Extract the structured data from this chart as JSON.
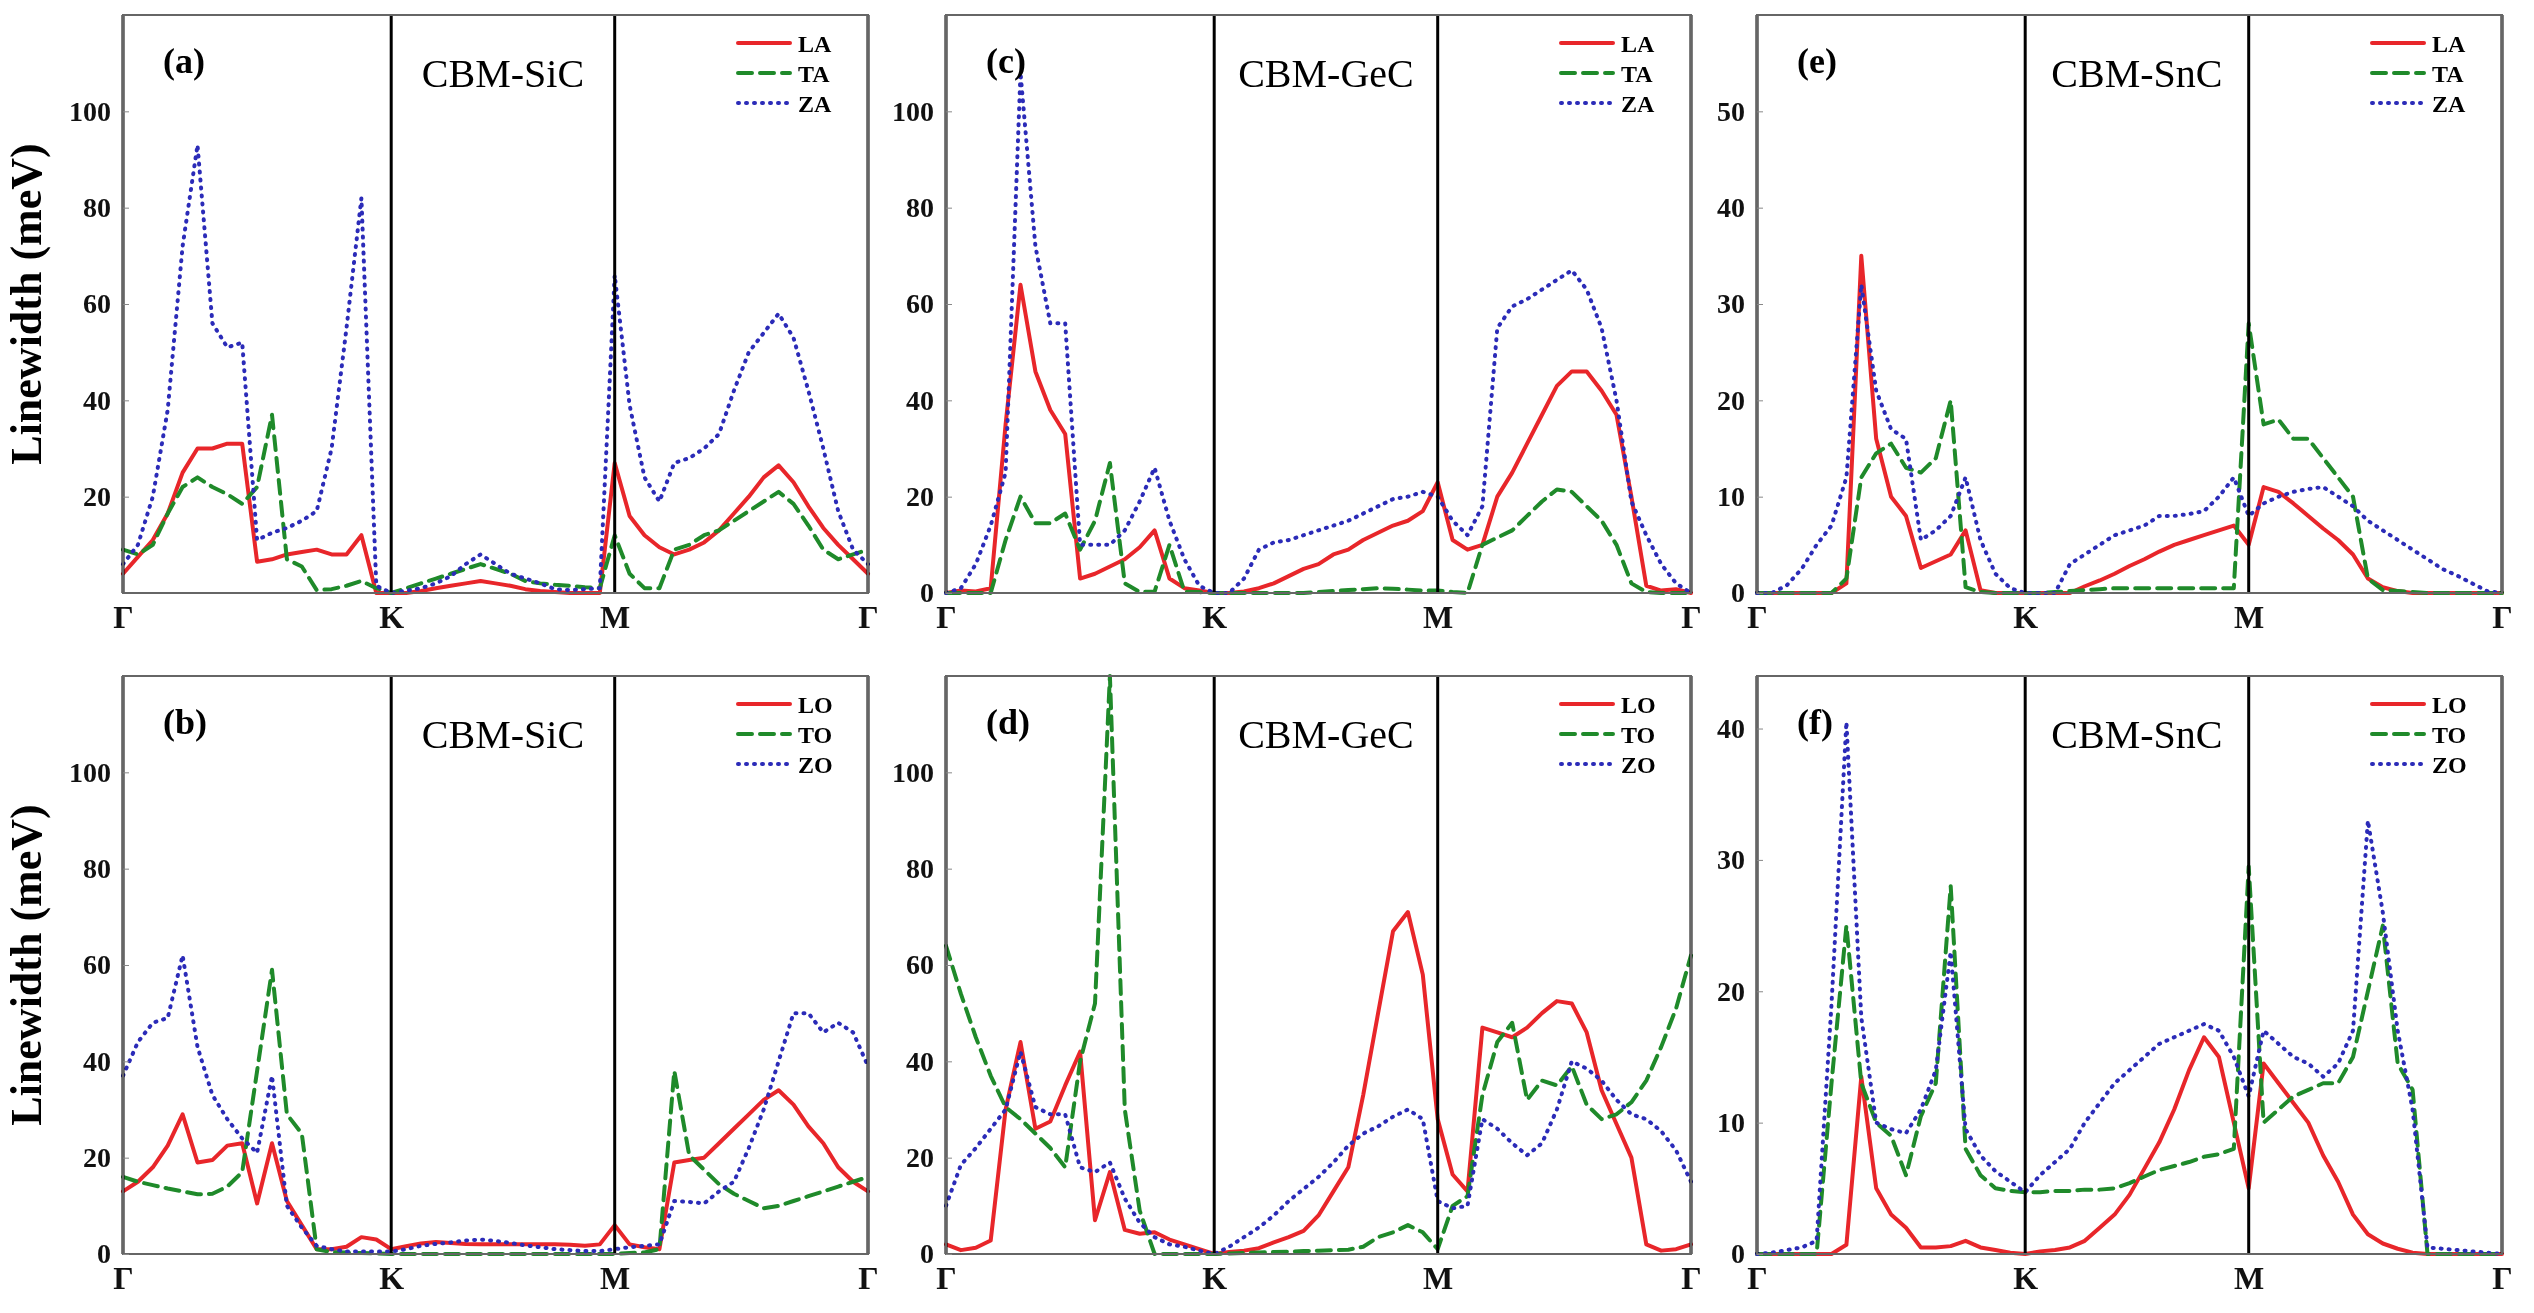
{
  "chart_data": [
    {
      "type": "line",
      "title": "(a)",
      "subtitle": "CBM-SiC",
      "ylabel": "Linewidth (meV)",
      "categories": [
        "Γ",
        null,
        null,
        null,
        null,
        null,
        null,
        null,
        null,
        null,
        null,
        null,
        null,
        null,
        null,
        null,
        null,
        null,
        "K",
        null,
        null,
        null,
        null,
        null,
        null,
        null,
        null,
        null,
        null,
        null,
        null,
        null,
        null,
        "M",
        null,
        null,
        null,
        null,
        null,
        null,
        null,
        null,
        null,
        null,
        null,
        null,
        null,
        null,
        null,
        null,
        "Γ"
      ],
      "ylim": [
        0,
        120
      ],
      "yticks": [
        20,
        40,
        60,
        80,
        100
      ],
      "legend": "top right",
      "grid": "x",
      "series": [
        {
          "name": "LA",
          "color": "#e8262a",
          "line_style": "solid",
          "values": [
            4,
            7.5,
            11,
            16.5,
            25,
            30,
            30,
            31,
            31,
            6.5,
            7,
            8,
            8.5,
            9,
            8,
            8,
            12,
            0,
            0,
            0,
            0.4,
            1,
            1.5,
            2,
            2.5,
            2,
            1.5,
            0.8,
            0.4,
            0.2,
            0,
            0,
            0,
            27,
            16,
            12,
            9.5,
            8,
            9,
            10.5,
            13,
            16.5,
            20,
            24,
            26.5,
            23,
            18,
            13.5,
            10,
            7,
            4
          ]
        },
        {
          "name": "TA",
          "color": "#1f8a2a",
          "line_style": "dashed",
          "values": [
            9,
            8,
            10,
            16.5,
            22,
            24,
            22,
            20.5,
            18.5,
            22,
            37,
            7,
            5.5,
            0.6,
            0.8,
            1.5,
            2.5,
            1,
            0,
            1,
            2,
            3,
            4,
            5,
            6,
            5,
            4,
            2.5,
            2,
            1.7,
            1.5,
            1.2,
            1,
            12,
            4,
            1,
            1,
            9,
            10,
            12,
            13,
            15,
            17,
            19,
            21,
            18.5,
            14,
            9,
            7,
            8,
            9
          ]
        },
        {
          "name": "ZA",
          "color": "#2b2bb8",
          "line_style": "dotted",
          "values": [
            6,
            10,
            20,
            38,
            72,
            93,
            56,
            51,
            52,
            11,
            12.5,
            13.5,
            15,
            17,
            30,
            55,
            82,
            1.5,
            0,
            0.5,
            1,
            2,
            3.5,
            6,
            8,
            6,
            4,
            3,
            2,
            0.8,
            0.6,
            0.8,
            1,
            66,
            39,
            24,
            19,
            27,
            28,
            30,
            33,
            42,
            50,
            54,
            58,
            53,
            42,
            30,
            17,
            9,
            6
          ]
        }
      ]
    },
    {
      "type": "line",
      "title": "(c)",
      "subtitle": "CBM-GeC",
      "categories": [
        "Γ",
        null,
        null,
        null,
        null,
        null,
        null,
        null,
        null,
        null,
        null,
        null,
        null,
        null,
        null,
        null,
        null,
        null,
        "K",
        null,
        null,
        null,
        null,
        null,
        null,
        null,
        null,
        null,
        null,
        null,
        null,
        null,
        null,
        "M",
        null,
        null,
        null,
        null,
        null,
        null,
        null,
        null,
        null,
        null,
        null,
        null,
        null,
        null,
        null,
        null,
        "Γ"
      ],
      "ylim": [
        0,
        120
      ],
      "yticks": [
        0,
        20,
        40,
        60,
        80,
        100
      ],
      "legend": "top right",
      "grid": "x",
      "series": [
        {
          "name": "LA",
          "color": "#e8262a",
          "line_style": "solid",
          "values": [
            0,
            0.5,
            0.3,
            1,
            35,
            64,
            46,
            38,
            33,
            3,
            4,
            5.5,
            7,
            9.5,
            13,
            3,
            1,
            0.5,
            0,
            0,
            0.3,
            1,
            2,
            3.5,
            5,
            6,
            8,
            9,
            11,
            12.5,
            14,
            15,
            17,
            23,
            11,
            9,
            10,
            20,
            25,
            31,
            37,
            43,
            46,
            46,
            42,
            37,
            20,
            1.5,
            0.5,
            0.8,
            0
          ]
        },
        {
          "name": "TA",
          "color": "#1f8a2a",
          "line_style": "dashed",
          "values": [
            0,
            0,
            0,
            0,
            11,
            20,
            14.5,
            14.5,
            16.5,
            9,
            15,
            27,
            2,
            0.2,
            0.3,
            10,
            0.3,
            0.2,
            0,
            0,
            0,
            0,
            0,
            0,
            0,
            0.2,
            0.4,
            0.6,
            0.8,
            1,
            0.9,
            0.7,
            0.5,
            0.5,
            0.2,
            0,
            10,
            11.5,
            13,
            16,
            19,
            21.5,
            21,
            18,
            15,
            10,
            2,
            0.2,
            0,
            0,
            0
          ]
        },
        {
          "name": "ZA",
          "color": "#2b2bb8",
          "line_style": "dotted",
          "values": [
            0,
            1,
            6,
            14,
            25,
            108,
            72,
            56,
            56,
            10,
            10,
            10,
            13,
            19,
            26,
            15,
            7,
            1.5,
            0,
            0,
            3,
            9,
            10.5,
            11,
            12,
            13,
            14,
            15,
            16.5,
            18,
            19.5,
            20,
            21,
            20,
            15,
            12,
            18,
            55,
            59.5,
            61,
            63,
            65,
            67,
            63,
            55,
            40,
            19,
            12,
            6,
            2,
            0
          ]
        }
      ]
    },
    {
      "type": "line",
      "title": "(e)",
      "subtitle": "CBM-SnC",
      "categories": [
        "Γ",
        null,
        null,
        null,
        null,
        null,
        null,
        null,
        null,
        null,
        null,
        null,
        null,
        null,
        null,
        null,
        null,
        null,
        "K",
        null,
        null,
        null,
        null,
        null,
        null,
        null,
        null,
        null,
        null,
        null,
        null,
        null,
        null,
        "M",
        null,
        null,
        null,
        null,
        null,
        null,
        null,
        null,
        null,
        null,
        null,
        null,
        null,
        null,
        null,
        null,
        "Γ"
      ],
      "ylim": [
        0,
        60
      ],
      "yticks": [
        0,
        10,
        20,
        30,
        40,
        50
      ],
      "legend": "top right",
      "grid": "x",
      "series": [
        {
          "name": "LA",
          "color": "#e8262a",
          "line_style": "solid",
          "values": [
            0,
            0,
            0,
            0,
            0,
            0,
            1,
            35,
            16,
            10,
            8,
            2.6,
            3.3,
            4,
            6.5,
            0.3,
            0,
            0,
            0,
            0,
            0,
            0,
            0.7,
            1.3,
            2,
            2.8,
            3.5,
            4.3,
            5,
            5.5,
            6,
            6.5,
            7,
            5,
            11,
            10.5,
            9.3,
            8,
            6.7,
            5.5,
            4,
            1.5,
            0.6,
            0.2,
            0,
            0,
            0,
            0,
            0,
            0,
            0
          ]
        },
        {
          "name": "TA",
          "color": "#1f8a2a",
          "line_style": "dashed",
          "values": [
            0,
            0,
            0,
            0,
            0,
            0,
            1.5,
            12,
            14.5,
            15.5,
            13,
            12.5,
            14,
            20,
            0.6,
            0.1,
            0,
            0,
            0,
            0,
            0.1,
            0.2,
            0.3,
            0.4,
            0.5,
            0.5,
            0.5,
            0.5,
            0.5,
            0.5,
            0.5,
            0.5,
            0.5,
            28,
            17.5,
            18,
            16,
            16,
            14,
            12,
            10,
            1.5,
            0.3,
            0.2,
            0.1,
            0,
            0,
            0,
            0,
            0,
            0
          ]
        },
        {
          "name": "ZA",
          "color": "#2b2bb8",
          "line_style": "dotted",
          "values": [
            0,
            0,
            0.8,
            2.5,
            5,
            7,
            12,
            32,
            21,
            17,
            16,
            5.5,
            6.5,
            8,
            12,
            5.5,
            2,
            0.5,
            0,
            0,
            0,
            3,
            4,
            5,
            6,
            6.5,
            7,
            8,
            8,
            8.2,
            8.5,
            10,
            12,
            8,
            9.3,
            10,
            10.5,
            10.8,
            11,
            10,
            9,
            7.5,
            6.5,
            5.5,
            4.5,
            3.5,
            2.5,
            1.8,
            1,
            0.2,
            0
          ]
        }
      ]
    },
    {
      "type": "line",
      "title": "(b)",
      "subtitle": "CBM-SiC",
      "ylabel": "Linewidth (meV)",
      "categories": [
        "Γ",
        null,
        null,
        null,
        null,
        null,
        null,
        null,
        null,
        null,
        null,
        null,
        null,
        null,
        null,
        null,
        null,
        null,
        "K",
        null,
        null,
        null,
        null,
        null,
        null,
        null,
        null,
        null,
        null,
        null,
        null,
        null,
        null,
        "M",
        null,
        null,
        null,
        null,
        null,
        null,
        null,
        null,
        null,
        null,
        null,
        null,
        null,
        null,
        null,
        null,
        "Γ"
      ],
      "ylim": [
        0,
        120
      ],
      "yticks": [
        0,
        20,
        40,
        60,
        80,
        100
      ],
      "legend": "top right",
      "grid": "x",
      "series": [
        {
          "name": "LO",
          "color": "#e8262a",
          "line_style": "solid",
          "values": [
            13,
            15,
            18,
            22.5,
            29,
            19,
            19.5,
            22.5,
            23,
            10.5,
            23,
            11,
            6,
            1,
            1,
            1.5,
            3.5,
            3,
            1,
            1.6,
            2.2,
            2.5,
            2.3,
            2.1,
            2,
            2,
            2,
            2,
            2,
            2,
            1.9,
            1.7,
            2,
            6,
            2,
            1.4,
            1,
            19,
            19.5,
            20,
            23,
            26,
            29,
            32,
            34,
            31,
            26.5,
            23,
            18,
            15,
            13
          ]
        },
        {
          "name": "TO",
          "color": "#1f8a2a",
          "line_style": "dashed",
          "values": [
            16,
            15,
            14.3,
            13.6,
            13,
            12.4,
            12.5,
            14,
            17,
            38,
            59,
            29,
            25,
            1,
            0.4,
            0.3,
            0.2,
            0.1,
            0,
            0,
            0,
            0,
            0,
            0,
            0,
            0,
            0,
            0,
            0,
            0,
            0,
            0,
            0,
            0,
            0.2,
            0.3,
            1,
            38,
            20.5,
            17.5,
            14.5,
            12.5,
            11,
            9.5,
            10,
            11,
            12,
            13,
            14,
            15,
            16
          ]
        },
        {
          "name": "ZO",
          "color": "#2b2bb8",
          "line_style": "dotted",
          "values": [
            37,
            44,
            48,
            49,
            62,
            43,
            33,
            28,
            24,
            21,
            37,
            10,
            5.5,
            1.7,
            1,
            0.5,
            0.5,
            0.5,
            0.5,
            1,
            1.7,
            2.1,
            2.4,
            2.8,
            3,
            2.7,
            2.3,
            1.8,
            1.4,
            1,
            0.8,
            0.6,
            0.6,
            1,
            1.4,
            1.7,
            2,
            11,
            10.8,
            10.5,
            13,
            15,
            22,
            30,
            40,
            50,
            50,
            46,
            48,
            46,
            39
          ]
        }
      ]
    },
    {
      "type": "line",
      "title": "(d)",
      "subtitle": "CBM-GeC",
      "categories": [
        "Γ",
        null,
        null,
        null,
        null,
        null,
        null,
        null,
        null,
        null,
        null,
        null,
        null,
        null,
        null,
        null,
        null,
        null,
        "K",
        null,
        null,
        null,
        null,
        null,
        null,
        null,
        null,
        null,
        null,
        null,
        null,
        null,
        null,
        "M",
        null,
        null,
        null,
        null,
        null,
        null,
        null,
        null,
        null,
        null,
        null,
        null,
        null,
        null,
        null,
        null,
        "Γ"
      ],
      "ylim": [
        0,
        120
      ],
      "yticks": [
        0,
        20,
        40,
        60,
        80,
        100
      ],
      "legend": "top right",
      "grid": "x",
      "series": [
        {
          "name": "LO",
          "color": "#e8262a",
          "line_style": "solid",
          "values": [
            2,
            0.8,
            1.3,
            2.8,
            30,
            44,
            26,
            27.5,
            35,
            42,
            7,
            17,
            5,
            4.2,
            4.5,
            3,
            2,
            1,
            0,
            0.4,
            0.7,
            1.2,
            2.4,
            3.5,
            4.8,
            8,
            13,
            18,
            33,
            50,
            67,
            71,
            58,
            28,
            16.5,
            13,
            47,
            46,
            45,
            47,
            50,
            52.5,
            52,
            46,
            34,
            27,
            20,
            2,
            0.7,
            1,
            2
          ]
        },
        {
          "name": "TO",
          "color": "#1f8a2a",
          "line_style": "dashed",
          "values": [
            64,
            54,
            45,
            37,
            30.5,
            28,
            25,
            22,
            18,
            40,
            52,
            120,
            30,
            9,
            0,
            0,
            0,
            0,
            0,
            0.1,
            0.2,
            0.3,
            0.4,
            0.5,
            0.6,
            0.7,
            0.8,
            0.9,
            1.5,
            3.5,
            4.5,
            6,
            4.5,
            1,
            10,
            12,
            33,
            44,
            48,
            32,
            36,
            35,
            39,
            31,
            28,
            29,
            31.5,
            36,
            43,
            51,
            62
          ]
        },
        {
          "name": "ZO",
          "color": "#2b2bb8",
          "line_style": "dotted",
          "values": [
            10,
            18.5,
            22,
            26,
            30,
            42,
            30.5,
            29,
            29,
            18,
            17,
            19,
            11.5,
            6.5,
            3.5,
            2,
            1.5,
            0.7,
            0,
            1.5,
            3.5,
            5.5,
            8,
            11,
            13.5,
            16,
            19,
            22.5,
            25,
            26.5,
            28.5,
            30,
            28,
            11,
            9.5,
            10,
            28,
            26,
            23,
            20.5,
            23,
            30,
            40,
            38.5,
            36,
            32,
            29,
            28,
            25.5,
            21.5,
            15
          ]
        }
      ]
    },
    {
      "type": "line",
      "title": "(f)",
      "subtitle": "CBM-SnC",
      "categories": [
        "Γ",
        null,
        null,
        null,
        null,
        null,
        null,
        null,
        null,
        null,
        null,
        null,
        null,
        null,
        null,
        null,
        null,
        null,
        "K",
        null,
        null,
        null,
        null,
        null,
        null,
        null,
        null,
        null,
        null,
        null,
        null,
        null,
        null,
        "M",
        null,
        null,
        null,
        null,
        null,
        null,
        null,
        null,
        null,
        null,
        null,
        null,
        null,
        null,
        null,
        null,
        "Γ"
      ],
      "ylim": [
        0,
        44
      ],
      "yticks": [
        0,
        10,
        20,
        30,
        40
      ],
      "legend": "top right",
      "grid": "x",
      "series": [
        {
          "name": "LO",
          "color": "#e8262a",
          "line_style": "solid",
          "values": [
            0,
            0,
            0,
            0,
            0,
            0,
            0.7,
            13.5,
            5,
            3,
            2,
            0.5,
            0.5,
            0.6,
            1,
            0.5,
            0.3,
            0.1,
            0,
            0.2,
            0.3,
            0.5,
            1,
            2,
            3,
            4.5,
            6.5,
            8.5,
            11,
            14,
            16.5,
            15,
            10,
            5,
            14.5,
            13,
            11.5,
            10,
            7.5,
            5.5,
            3,
            1.5,
            0.8,
            0.4,
            0.1,
            0,
            0,
            0,
            0,
            0,
            0
          ]
        },
        {
          "name": "TO",
          "color": "#1f8a2a",
          "line_style": "dashed",
          "values": [
            0,
            0,
            0,
            0,
            0,
            13,
            25,
            13,
            10,
            9,
            6,
            10.5,
            13,
            28,
            8,
            6,
            5,
            4.8,
            4.7,
            4.7,
            4.8,
            4.8,
            4.9,
            4.9,
            5,
            5.4,
            5.9,
            6.4,
            6.7,
            7,
            7.4,
            7.6,
            8,
            29.5,
            10,
            11,
            12,
            12.5,
            13,
            13,
            15,
            20,
            25,
            14.5,
            12.5,
            0,
            0,
            0,
            0,
            0,
            0
          ]
        },
        {
          "name": "ZO",
          "color": "#2b2bb8",
          "line_style": "dotted",
          "values": [
            0,
            0.1,
            0.3,
            0.5,
            1,
            19,
            40.5,
            18,
            10,
            9.5,
            9.2,
            11,
            14,
            23,
            9.5,
            7.5,
            6.3,
            5.5,
            4.7,
            6,
            7,
            8,
            10,
            11.5,
            13,
            14,
            15,
            16,
            16.5,
            17,
            17.5,
            17,
            15,
            12,
            17,
            16,
            15,
            14.5,
            13.5,
            14.5,
            17,
            33,
            26,
            17,
            11,
            0.5,
            0.4,
            0.3,
            0.2,
            0.1,
            0
          ]
        }
      ]
    }
  ]
}
